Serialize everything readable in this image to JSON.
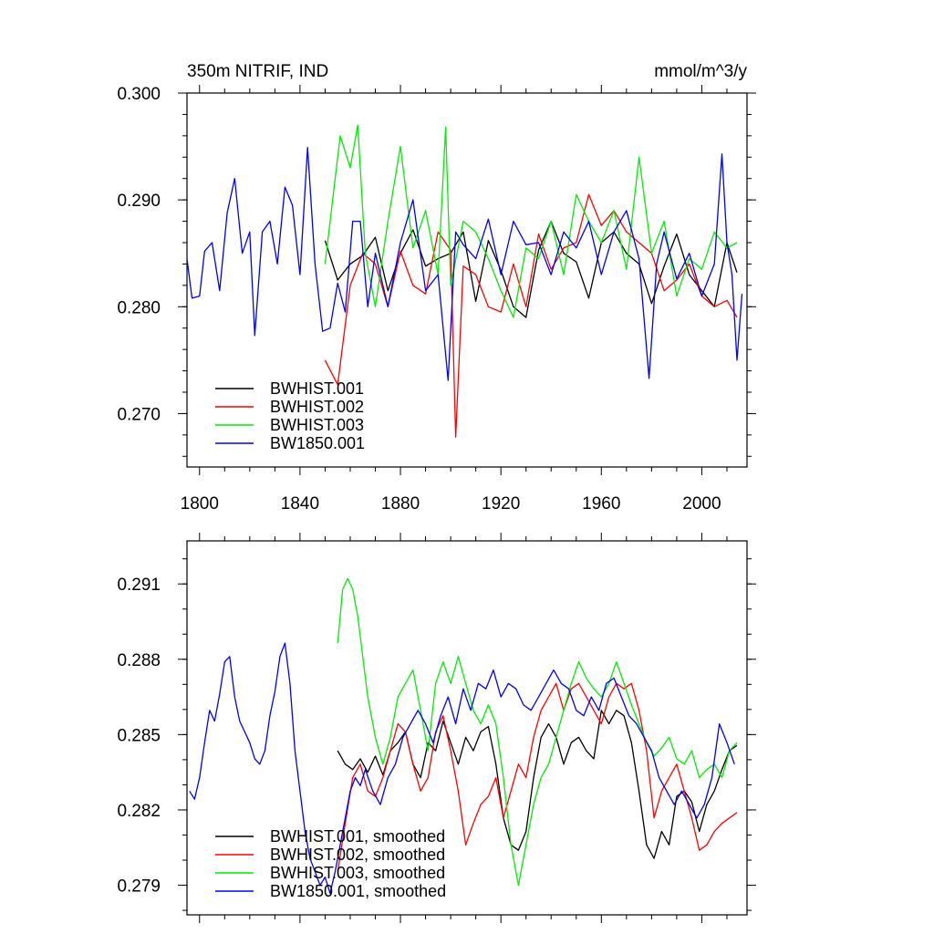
{
  "chart_data": [
    {
      "type": "line",
      "title_left": "350m NITRIF, IND",
      "title_right": "mmol/m^3/y",
      "xlim": [
        1795,
        2018
      ],
      "ylim": [
        0.265,
        0.3
      ],
      "x_ticks": [
        1800,
        1840,
        1880,
        1920,
        1960,
        2000
      ],
      "x_tick_labels": [
        "1800",
        "1840",
        "1880",
        "1920",
        "1960",
        "2000"
      ],
      "y_ticks": [
        0.27,
        0.28,
        0.29,
        0.3
      ],
      "y_tick_labels": [
        "0.270",
        "0.280",
        "0.290",
        "0.300"
      ],
      "legend_position": "bottom-left",
      "series": [
        {
          "name": "BWHIST.001",
          "color": "#000000",
          "x": [
            1850,
            1855,
            1860,
            1865,
            1870,
            1875,
            1880,
            1885,
            1890,
            1895,
            1900,
            1905,
            1910,
            1915,
            1920,
            1925,
            1930,
            1935,
            1940,
            1945,
            1950,
            1955,
            1960,
            1965,
            1970,
            1975,
            1980,
            1985,
            1990,
            1995,
            2000,
            2005,
            2010,
            2014
          ],
          "values": [
            0.2862,
            0.2825,
            0.284,
            0.2848,
            0.2865,
            0.2815,
            0.285,
            0.2872,
            0.2838,
            0.2845,
            0.285,
            0.287,
            0.2805,
            0.2862,
            0.2834,
            0.28,
            0.279,
            0.2853,
            0.288,
            0.285,
            0.2842,
            0.2808,
            0.286,
            0.287,
            0.285,
            0.284,
            0.2803,
            0.2838,
            0.2868,
            0.283,
            0.2815,
            0.28,
            0.286,
            0.2832
          ]
        },
        {
          "name": "BWHIST.002",
          "color": "#ff0000",
          "x": [
            1850,
            1855,
            1860,
            1865,
            1870,
            1875,
            1880,
            1885,
            1890,
            1895,
            1900,
            1902,
            1905,
            1910,
            1915,
            1920,
            1925,
            1930,
            1935,
            1940,
            1945,
            1950,
            1955,
            1960,
            1965,
            1970,
            1975,
            1980,
            1985,
            1990,
            1995,
            2000,
            2005,
            2010,
            2014
          ],
          "values": [
            0.275,
            0.2727,
            0.282,
            0.285,
            0.284,
            0.28,
            0.2852,
            0.282,
            0.2812,
            0.287,
            0.2853,
            0.2678,
            0.2838,
            0.283,
            0.28,
            0.2795,
            0.284,
            0.28,
            0.2868,
            0.2835,
            0.2855,
            0.286,
            0.2905,
            0.2876,
            0.289,
            0.287,
            0.286,
            0.285,
            0.2815,
            0.2825,
            0.284,
            0.281,
            0.28,
            0.2806,
            0.279
          ]
        },
        {
          "name": "BWHIST.003",
          "color": "#00ee00",
          "x": [
            1850,
            1853,
            1856,
            1860,
            1863,
            1866,
            1870,
            1875,
            1880,
            1885,
            1890,
            1895,
            1898,
            1900,
            1905,
            1910,
            1915,
            1920,
            1925,
            1930,
            1935,
            1940,
            1945,
            1950,
            1955,
            1960,
            1965,
            1970,
            1975,
            1980,
            1985,
            1990,
            1995,
            2000,
            2005,
            2010,
            2014
          ],
          "values": [
            0.284,
            0.29,
            0.296,
            0.293,
            0.297,
            0.285,
            0.28,
            0.288,
            0.295,
            0.2855,
            0.289,
            0.283,
            0.2968,
            0.282,
            0.288,
            0.287,
            0.2845,
            0.2815,
            0.279,
            0.2855,
            0.2845,
            0.288,
            0.283,
            0.2905,
            0.288,
            0.286,
            0.289,
            0.2835,
            0.294,
            0.285,
            0.288,
            0.281,
            0.2845,
            0.2835,
            0.287,
            0.2855,
            0.286
          ]
        },
        {
          "name": "BW1850.001",
          "color": "#0000ff",
          "x": [
            1795,
            1797,
            1800,
            1802,
            1805,
            1808,
            1811,
            1814,
            1817,
            1820,
            1822,
            1825,
            1828,
            1831,
            1834,
            1837,
            1840,
            1843,
            1846,
            1849,
            1852,
            1855,
            1858,
            1861,
            1864,
            1867,
            1870,
            1875,
            1880,
            1885,
            1890,
            1895,
            1899,
            1902,
            1905,
            1910,
            1915,
            1920,
            1925,
            1930,
            1935,
            1940,
            1945,
            1950,
            1955,
            1960,
            1965,
            1970,
            1975,
            1979,
            1982,
            1985,
            1990,
            1995,
            2000,
            2005,
            2008,
            2010,
            2012,
            2014,
            2016
          ],
          "values": [
            0.2845,
            0.2808,
            0.281,
            0.2852,
            0.286,
            0.2815,
            0.2888,
            0.292,
            0.285,
            0.287,
            0.2773,
            0.287,
            0.288,
            0.284,
            0.2912,
            0.2895,
            0.283,
            0.2949,
            0.284,
            0.2777,
            0.278,
            0.2822,
            0.2795,
            0.288,
            0.288,
            0.28,
            0.285,
            0.28,
            0.286,
            0.29,
            0.2815,
            0.283,
            0.2731,
            0.287,
            0.2858,
            0.2845,
            0.2882,
            0.283,
            0.288,
            0.2858,
            0.286,
            0.283,
            0.287,
            0.2855,
            0.288,
            0.283,
            0.287,
            0.289,
            0.2845,
            0.2733,
            0.284,
            0.287,
            0.2826,
            0.285,
            0.281,
            0.284,
            0.2943,
            0.286,
            0.283,
            0.275,
            0.2812
          ]
        }
      ]
    },
    {
      "type": "line",
      "xlim": [
        1795,
        2018
      ],
      "ylim": [
        0.2784,
        0.2923
      ],
      "x_ticks": [
        1800,
        1840,
        1880,
        1920,
        1960,
        2000
      ],
      "y_ticks": [
        0.2795,
        0.2823,
        0.2851,
        0.2879,
        0.2907
      ],
      "y_tick_labels": [
        "0.279",
        "0.282",
        "0.285",
        "0.288",
        "0.291"
      ],
      "legend_position": "bottom-left",
      "series": [
        {
          "name": "BWHIST.001, smoothed",
          "color": "#000000",
          "x": [
            1855,
            1858,
            1861,
            1864,
            1867,
            1870,
            1873,
            1876,
            1879,
            1882,
            1885,
            1888,
            1891,
            1894,
            1897,
            1900,
            1903,
            1906,
            1909,
            1912,
            1915,
            1918,
            1921,
            1924,
            1927,
            1930,
            1933,
            1936,
            1939,
            1942,
            1945,
            1948,
            1951,
            1954,
            1957,
            1960,
            1963,
            1966,
            1969,
            1972,
            1975,
            1978,
            1981,
            1984,
            1987,
            1990,
            1993,
            1996,
            1999,
            2002,
            2005,
            2008,
            2011,
            2014
          ],
          "values": [
            0.2845,
            0.284,
            0.2838,
            0.2842,
            0.2837,
            0.2843,
            0.2836,
            0.2845,
            0.2848,
            0.2852,
            0.284,
            0.2835,
            0.2848,
            0.2845,
            0.2856,
            0.2848,
            0.284,
            0.285,
            0.2845,
            0.2852,
            0.2854,
            0.284,
            0.282,
            0.281,
            0.2808,
            0.2815,
            0.2835,
            0.285,
            0.2855,
            0.285,
            0.284,
            0.2848,
            0.285,
            0.2845,
            0.2842,
            0.286,
            0.2855,
            0.286,
            0.2858,
            0.2848,
            0.283,
            0.281,
            0.2805,
            0.2815,
            0.281,
            0.2828,
            0.283,
            0.2826,
            0.2815,
            0.2825,
            0.283,
            0.2838,
            0.2845,
            0.2847
          ]
        },
        {
          "name": "BWHIST.002, smoothed",
          "color": "#ff0000",
          "x": [
            1855,
            1858,
            1861,
            1864,
            1867,
            1870,
            1873,
            1876,
            1879,
            1882,
            1885,
            1888,
            1891,
            1894,
            1897,
            1900,
            1903,
            1906,
            1909,
            1912,
            1915,
            1918,
            1921,
            1924,
            1927,
            1930,
            1933,
            1936,
            1939,
            1942,
            1945,
            1948,
            1951,
            1954,
            1957,
            1960,
            1963,
            1966,
            1969,
            1972,
            1975,
            1978,
            1981,
            1984,
            1987,
            1990,
            1993,
            1996,
            1999,
            2002,
            2005,
            2008,
            2011,
            2014
          ],
          "values": [
            0.28,
            0.2818,
            0.2835,
            0.284,
            0.283,
            0.2828,
            0.2835,
            0.2845,
            0.2855,
            0.2852,
            0.284,
            0.283,
            0.2835,
            0.2852,
            0.2858,
            0.2845,
            0.283,
            0.281,
            0.2818,
            0.2825,
            0.2828,
            0.2835,
            0.282,
            0.283,
            0.284,
            0.2835,
            0.285,
            0.286,
            0.2865,
            0.287,
            0.286,
            0.2868,
            0.287,
            0.2865,
            0.286,
            0.2855,
            0.2865,
            0.287,
            0.2868,
            0.287,
            0.286,
            0.2845,
            0.282,
            0.283,
            0.2835,
            0.284,
            0.283,
            0.282,
            0.2808,
            0.281,
            0.2815,
            0.2818,
            0.282,
            0.2822
          ]
        },
        {
          "name": "BWHIST.003, smoothed",
          "color": "#00ee00",
          "x": [
            1855,
            1857,
            1859,
            1861,
            1863,
            1865,
            1867,
            1870,
            1873,
            1876,
            1879,
            1882,
            1885,
            1888,
            1891,
            1894,
            1897,
            1900,
            1903,
            1906,
            1909,
            1912,
            1915,
            1918,
            1921,
            1924,
            1927,
            1930,
            1933,
            1936,
            1939,
            1942,
            1945,
            1948,
            1951,
            1954,
            1957,
            1960,
            1963,
            1966,
            1969,
            1972,
            1975,
            1978,
            1981,
            1984,
            1987,
            1990,
            1993,
            1996,
            1999,
            2002,
            2005,
            2008,
            2011,
            2014
          ],
          "values": [
            0.2885,
            0.2905,
            0.2909,
            0.2905,
            0.2895,
            0.288,
            0.2865,
            0.285,
            0.284,
            0.285,
            0.2865,
            0.287,
            0.2875,
            0.286,
            0.2845,
            0.287,
            0.2878,
            0.287,
            0.288,
            0.287,
            0.286,
            0.2855,
            0.2862,
            0.2855,
            0.2835,
            0.281,
            0.2795,
            0.281,
            0.2825,
            0.2835,
            0.284,
            0.285,
            0.286,
            0.287,
            0.2878,
            0.2872,
            0.2868,
            0.2865,
            0.287,
            0.2878,
            0.287,
            0.2862,
            0.2855,
            0.2848,
            0.2843,
            0.2846,
            0.285,
            0.2842,
            0.284,
            0.2845,
            0.2835,
            0.2838,
            0.284,
            0.2835,
            0.2845,
            0.2848
          ]
        },
        {
          "name": "BW1850.001, smoothed",
          "color": "#0000ff",
          "x": [
            1796,
            1798,
            1800,
            1802,
            1804,
            1806,
            1808,
            1810,
            1812,
            1814,
            1816,
            1818,
            1820,
            1822,
            1824,
            1826,
            1828,
            1830,
            1832,
            1834,
            1836,
            1838,
            1840,
            1842,
            1844,
            1846,
            1848,
            1850,
            1852,
            1854,
            1856,
            1858,
            1860,
            1862,
            1864,
            1866,
            1869,
            1872,
            1875,
            1878,
            1881,
            1884,
            1887,
            1890,
            1893,
            1896,
            1899,
            1902,
            1905,
            1908,
            1911,
            1914,
            1917,
            1920,
            1923,
            1926,
            1929,
            1932,
            1935,
            1938,
            1941,
            1944,
            1947,
            1950,
            1953,
            1956,
            1959,
            1962,
            1965,
            1968,
            1971,
            1974,
            1977,
            1980,
            1983,
            1986,
            1989,
            1992,
            1995,
            1998,
            2001,
            2004,
            2007,
            2010,
            2013
          ],
          "values": [
            0.283,
            0.2827,
            0.2835,
            0.2848,
            0.286,
            0.2856,
            0.2866,
            0.2878,
            0.288,
            0.2865,
            0.2856,
            0.2852,
            0.2848,
            0.2842,
            0.284,
            0.2845,
            0.2858,
            0.2867,
            0.288,
            0.2885,
            0.287,
            0.2845,
            0.283,
            0.2815,
            0.2805,
            0.28,
            0.2795,
            0.2798,
            0.2792,
            0.28,
            0.281,
            0.282,
            0.283,
            0.2835,
            0.2832,
            0.2838,
            0.283,
            0.2825,
            0.2835,
            0.284,
            0.285,
            0.2855,
            0.286,
            0.2855,
            0.2848,
            0.2858,
            0.2865,
            0.2855,
            0.2868,
            0.286,
            0.287,
            0.2868,
            0.2875,
            0.2865,
            0.287,
            0.2868,
            0.2862,
            0.286,
            0.2865,
            0.287,
            0.2875,
            0.287,
            0.2868,
            0.286,
            0.2858,
            0.2865,
            0.286,
            0.287,
            0.2872,
            0.2865,
            0.2858,
            0.2855,
            0.285,
            0.2845,
            0.2835,
            0.283,
            0.2825,
            0.283,
            0.2825,
            0.282,
            0.2825,
            0.2835,
            0.2855,
            0.2848,
            0.284
          ]
        }
      ]
    }
  ]
}
